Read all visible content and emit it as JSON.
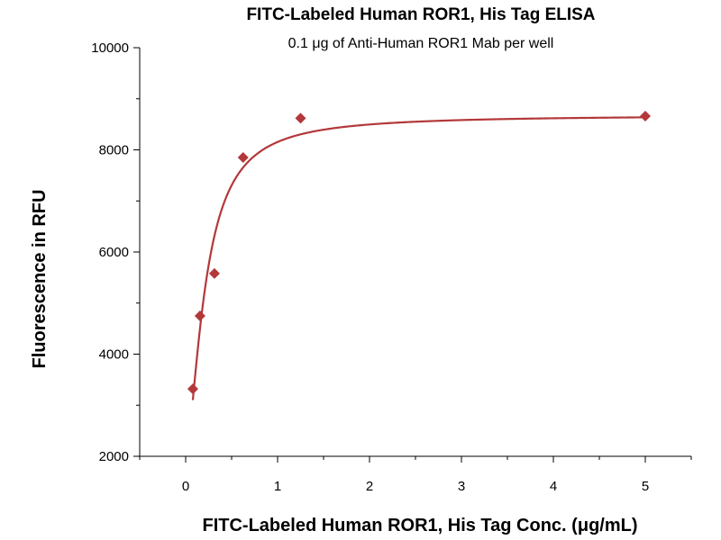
{
  "chart_data": {
    "type": "scatter",
    "title": "FITC-Labeled Human ROR1, His Tag ELISA",
    "subtitle": "0.1 μg of Anti-Human ROR1 Mab per well",
    "xlabel": "FITC-Labeled Human ROR1, His Tag Conc. (μg/mL)",
    "ylabel": "Fluorescence in RFU",
    "xlim": [
      -0.5,
      5.5
    ],
    "ylim": [
      2000,
      10000
    ],
    "x_ticks": [
      0,
      1,
      2,
      3,
      4,
      5
    ],
    "y_ticks": [
      2000,
      4000,
      6000,
      8000,
      10000
    ],
    "grid": false,
    "series": [
      {
        "x": [
          0.078,
          0.156,
          0.313,
          0.625,
          1.25,
          5
        ],
        "y": [
          3320,
          4750,
          5580,
          7850,
          8620,
          8660
        ],
        "marker": "diamond",
        "fit": "sigmoidal-curve",
        "color": "#b3383a"
      }
    ]
  }
}
